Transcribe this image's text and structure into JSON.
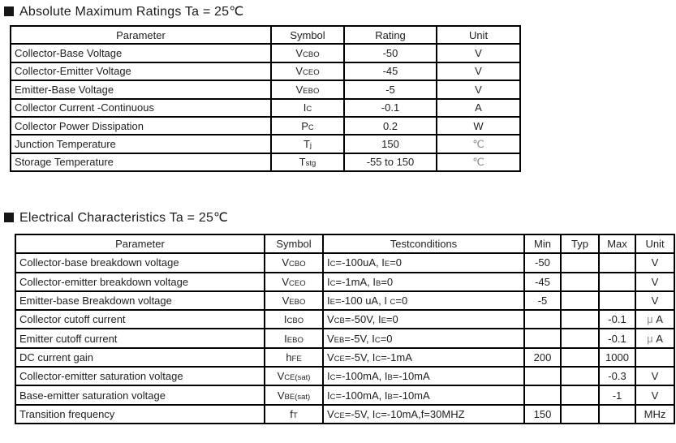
{
  "colors": {
    "text": "#1f1f1f",
    "border": "#000000",
    "muted_symbol": "#8a8a8a",
    "bullet": "#161616",
    "background": "#ffffff"
  },
  "abs_max": {
    "title": "Absolute Maximum Ratings Ta = 25℃",
    "columns": [
      "Parameter",
      "Symbol",
      "Rating",
      "Unit"
    ],
    "rows": [
      [
        "Collector-Base Voltage",
        "V_{CBO}",
        "-50",
        "V"
      ],
      [
        "Collector-Emitter Voltage",
        "V_{CEO}",
        "-45",
        "V"
      ],
      [
        "Emitter-Base Voltage",
        "V_{EBO}",
        "-5",
        "V"
      ],
      [
        "Collector Current -Continuous",
        "I_{C}",
        "-0.1",
        "A"
      ],
      [
        "Collector Power Dissipation",
        "P_{C}",
        "0.2",
        "W"
      ],
      [
        "Junction Temperature",
        "T_{j}",
        "150",
        "~{℃}"
      ],
      [
        "Storage Temperature",
        "T_{stg}",
        "-55 to 150",
        "~{℃}"
      ]
    ]
  },
  "elec": {
    "title": "Electrical Characteristics Ta = 25℃",
    "columns": [
      "Parameter",
      "Symbol",
      "Testconditions",
      "Min",
      "Typ",
      "Max",
      "Unit"
    ],
    "rows": [
      [
        "Collector-base breakdown voltage",
        "V_{CBO}",
        "I_{C}=-100uA, I_{E}=0",
        "-50",
        "",
        "",
        "V"
      ],
      [
        "Collector-emitter breakdown voltage",
        "V_{CEO}",
        "I_{C}=-1mA, I_{B}=0",
        "-45",
        "",
        "",
        "V"
      ],
      [
        "Emitter-base Breakdown voltage",
        "V_{EBO}",
        "I_{E}=-100 uA, I _{C}=0",
        "-5",
        "",
        "",
        "V"
      ],
      [
        "Collector cutoff current",
        "I_{CBO}",
        "V_{CB}=-50V, I_{E}=0",
        "",
        "",
        "-0.1",
        "~{μ} A"
      ],
      [
        "Emitter cutoff current",
        "I_{EBO}",
        "V_{EB}=-5V, I_{C}=0",
        "",
        "",
        "-0.1",
        "~{μ} A"
      ],
      [
        "DC current gain",
        "h_{FE}",
        "V_{CE}=-5V, I_{C}=-1mA",
        "200",
        "",
        "1000",
        ""
      ],
      [
        "Collector-emitter saturation voltage",
        "V_{CE(sat)}",
        "I_{C}=-100mA, I_{B}=-10mA",
        "",
        "",
        "-0.3",
        "V"
      ],
      [
        "Base-emitter saturation voltage",
        "V_{BE(sat)}",
        "I_{C}=-100mA, I_{B}=-10mA",
        "",
        "",
        "-1",
        "V"
      ],
      [
        "Transition frequency",
        "f_{T}",
        "V_{CE}=-5V, I_{C}=-10mA,f=30MHZ",
        "150",
        "",
        "",
        "MHz"
      ]
    ]
  }
}
